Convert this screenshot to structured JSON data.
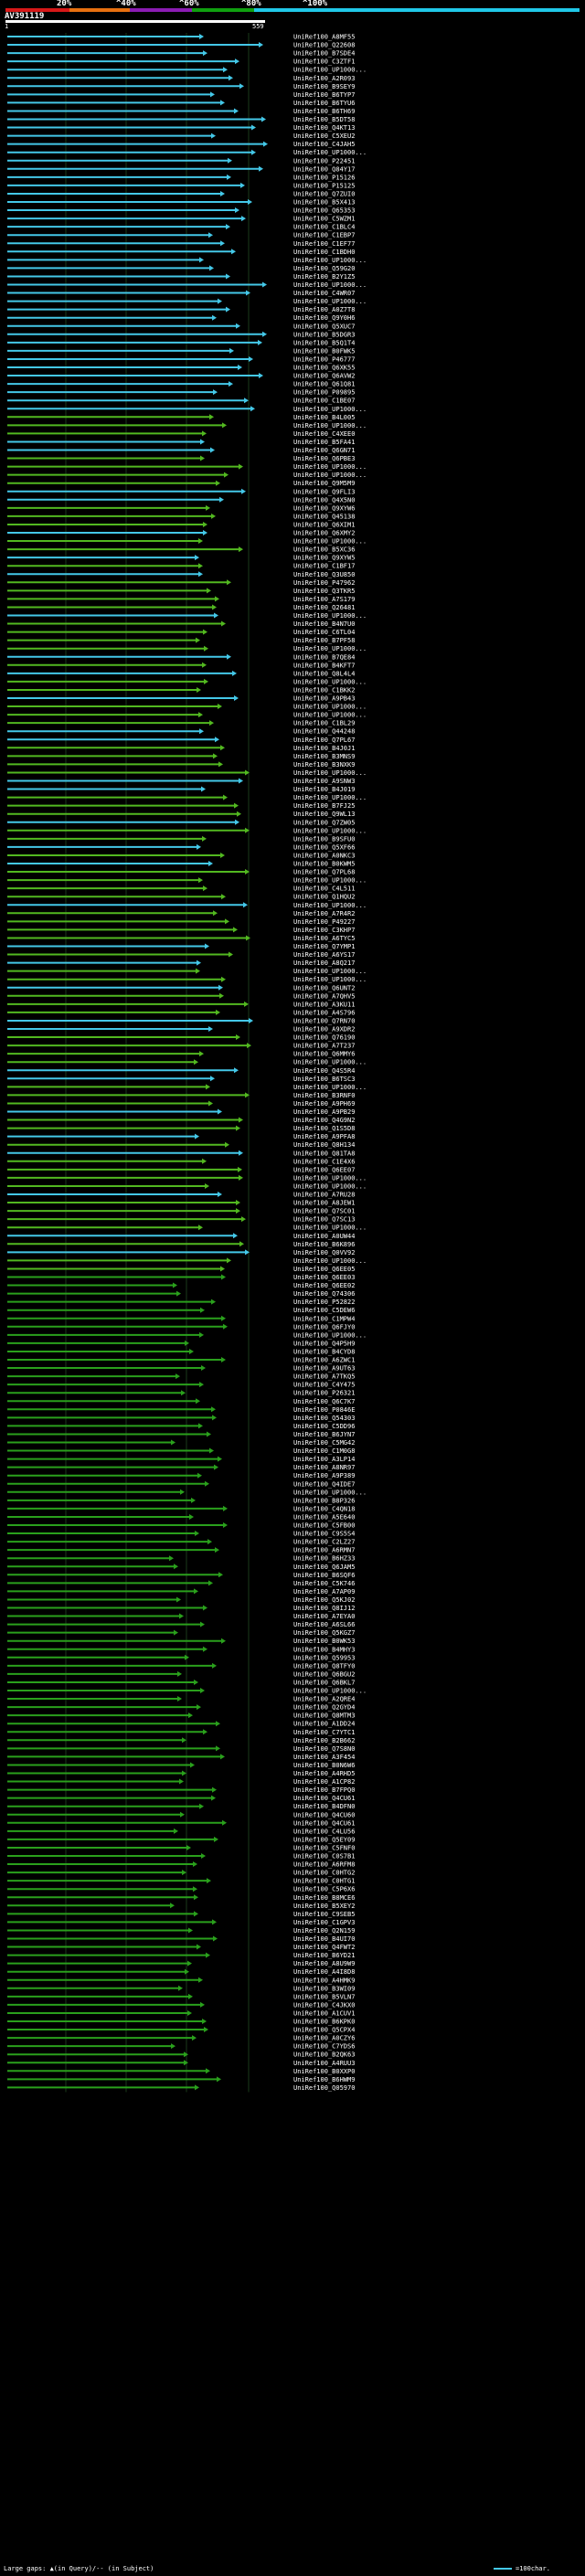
{
  "query": {
    "name": "AV391119",
    "start": "1",
    "end": "559"
  },
  "scale_ticks": [
    "20%",
    "^40%",
    "^60%",
    "^80%",
    "^100%"
  ],
  "colors": {
    "bg": "#000000",
    "seg_red": "#d81818",
    "seg_orange": "#e87010",
    "seg_purple": "#8c1cb4",
    "seg_green": "#10a010",
    "seg_cyan": "#20c8e8",
    "hit_high": "#44c8e8",
    "hit_mid": "#52b820",
    "hit_low": "#2aa01c"
  },
  "hits": [
    "UniRef100_A8MF55",
    "UniRef100_Q22608",
    "UniRef100_B7SDE4",
    "UniRef100_C3ZTF1",
    "UniRef100_UP1000...",
    "UniRef100_A2R093",
    "UniRef100_B9SEY9",
    "UniRef100_B6TYP7",
    "UniRef100_B6TYU6",
    "UniRef100_B6TH69",
    "UniRef100_B5DT58",
    "UniRef100_Q4KT13",
    "UniRef100_C5XEU2",
    "UniRef100_C4JAH5",
    "UniRef100_UP1000...",
    "UniRef100_P22451",
    "UniRef100_Q84Y17",
    "UniRef100_P15126",
    "UniRef100_P15125",
    "UniRef100_Q7ZUI0",
    "UniRef100_B5X413",
    "UniRef100_Q65353",
    "UniRef100_C5WZM1",
    "UniRef100_C1BLC4",
    "UniRef100_C1EBP7",
    "UniRef100_C1EF77",
    "UniRef100_C1BDH0",
    "UniRef100_UP1000...",
    "UniRef100_Q59G20",
    "UniRef100_B2Y1Z5",
    "UniRef100_UP1000...",
    "UniRef100_C4WR07",
    "UniRef100_UP1000...",
    "UniRef100_A0Z7T8",
    "UniRef100_Q9Y0H6",
    "UniRef100_Q5XUC7",
    "UniRef100_B5DGR3",
    "UniRef100_B5Q1T4",
    "UniRef100_B0FWK5",
    "UniRef100_P46777",
    "UniRef100_Q6XK55",
    "UniRef100_Q6AVW2",
    "UniRef100_Q61Q81",
    "UniRef100_P09895",
    "UniRef100_C1BE07",
    "UniRef100_UP1000...",
    "UniRef100_B4L005",
    "UniRef100_UP1000...",
    "UniRef100_C4XEE0",
    "UniRef100_B5FA41",
    "UniRef100_Q6GN71",
    "UniRef100_Q6PBE3",
    "UniRef100_UP1000...",
    "UniRef100_UP1000...",
    "UniRef100_Q9M5M9",
    "UniRef100_Q9FLI3",
    "UniRef100_Q4X5N0",
    "UniRef100_Q9XYW6",
    "UniRef100_Q45138",
    "UniRef100_Q6XIM1",
    "UniRef100_Q6XMY2",
    "UniRef100_UP1000...",
    "UniRef100_B5XC36",
    "UniRef100_Q9XYW5",
    "UniRef100_C1BF17",
    "UniRef100_Q3U850",
    "UniRef100_P47962",
    "UniRef100_Q3TKR5",
    "UniRef100_A7S179",
    "UniRef100_Q26481",
    "UniRef100_UP1000...",
    "UniRef100_B4N7U0",
    "UniRef100_C6TL04",
    "UniRef100_B7PF58",
    "UniRef100_UP1000...",
    "UniRef100_B7QE84",
    "UniRef100_B4KFT7",
    "UniRef100_Q8L4L4",
    "UniRef100_UP1000...",
    "UniRef100_C1BKK2",
    "UniRef100_A9PB43",
    "UniRef100_UP1000...",
    "UniRef100_UP1000...",
    "UniRef100_C1BL29",
    "UniRef100_Q44248",
    "UniRef100_Q7PL67",
    "UniRef100_B4J0J1",
    "UniRef100_B3MNS9",
    "UniRef100_B3NXK9",
    "UniRef100_UP1000...",
    "UniRef100_A9SNW3",
    "UniRef100_B4J019",
    "UniRef100_UP1000...",
    "UniRef100_B7FJ25",
    "UniRef100_Q9WL13",
    "UniRef100_Q7ZW05",
    "UniRef100_UP1000...",
    "UniRef100_B9SFU0",
    "UniRef100_Q5XF66",
    "UniRef100_A0NKC3",
    "UniRef100_B0KWM5",
    "UniRef100_Q7PL68",
    "UniRef100_UP1000...",
    "UniRef100_C4L511",
    "UniRef100_Q1HQU2",
    "UniRef100_UP1000...",
    "UniRef100_A7R4R2",
    "UniRef100_P49227",
    "UniRef100_C3KHP7",
    "UniRef100_A6TYC5",
    "UniRef100_Q7YMP1",
    "UniRef100_A6YS17",
    "UniRef100_A8Q217",
    "UniRef100_UP1000...",
    "UniRef100_UP1000...",
    "UniRef100_Q6UNT2",
    "UniRef100_A7QHV5",
    "UniRef100_A3KU11",
    "UniRef100_A4S796",
    "UniRef100_Q7RN70",
    "UniRef100_A9XDR2",
    "UniRef100_Q76190",
    "UniRef100_A7T237",
    "UniRef100_Q6MMY6",
    "UniRef100_UP1000...",
    "UniRef100_Q4S5R4",
    "UniRef100_B6TSC3",
    "UniRef100_UP1000...",
    "UniRef100_B3RNF0",
    "UniRef100_A9PH69",
    "UniRef100_A9PB29",
    "UniRef100_Q4G9N2",
    "UniRef100_Q1S5D8",
    "UniRef100_A9PFA8",
    "UniRef100_Q8H134",
    "UniRef100_Q81TA8",
    "UniRef100_C1E4X6",
    "UniRef100_Q6EE07",
    "UniRef100_UP1000...",
    "UniRef100_UP1000...",
    "UniRef100_A7RU28",
    "UniRef100_A8JEW1",
    "UniRef100_Q7SC01",
    "UniRef100_Q7SC13",
    "UniRef100_UP1000...",
    "UniRef100_A0UW44",
    "UniRef100_B6K896",
    "UniRef100_Q0VV92",
    "UniRef100_UP1000...",
    "UniRef100_Q6EE05",
    "UniRef100_Q6EE03",
    "UniRef100_Q6EE02",
    "UniRef100_Q74306",
    "UniRef100_P52822",
    "UniRef100_C5DEW6",
    "UniRef100_C1MPW4",
    "UniRef100_Q6FJY0",
    "UniRef100_UP1000...",
    "UniRef100_Q4P5H9",
    "UniRef100_B4CYD8",
    "UniRef100_A6ZWC1",
    "UniRef100_A9UT63",
    "UniRef100_A7TKQ5",
    "UniRef100_C4Y475",
    "UniRef100_P26321",
    "UniRef100_Q6C7K7",
    "UniRef100_P0846E",
    "UniRef100_Q54303",
    "UniRef100_C5DD96",
    "UniRef100_B6JYN7",
    "UniRef100_C5MG42",
    "UniRef100_C1M0G8",
    "UniRef100_A3LP14",
    "UniRef100_A8NR97",
    "UniRef100_A9P389",
    "UniRef100_Q4IDE7",
    "UniRef100_UP1000...",
    "UniRef100_B8P326",
    "UniRef100_C4QN18",
    "UniRef100_A5E640",
    "UniRef100_C5FB00",
    "UniRef100_C9S5S4",
    "UniRef100_C2LZ27",
    "UniRef100_A6RMN7",
    "UniRef100_B6HZ33",
    "UniRef100_Q6JAM5",
    "UniRef100_B6SQF6",
    "UniRef100_C5K746",
    "UniRef100_A7AP09",
    "UniRef100_Q5KJ02",
    "UniRef100_Q8IJ12",
    "UniRef100_A7EYA0",
    "UniRef100_A6SL66",
    "UniRef100_Q5KGZ7",
    "UniRef100_B0WK53",
    "UniRef100_B4MHY3",
    "UniRef100_Q59953",
    "UniRef100_Q8TFY0",
    "UniRef100_Q6BGU2",
    "UniRef100_Q6BKL7",
    "UniRef100_UP1000...",
    "UniRef100_A2QRE4",
    "UniRef100_Q2GYD4",
    "UniRef100_Q8MTM3",
    "UniRef100_A1DD24",
    "UniRef100_C7YTC1",
    "UniRef100_B2B662",
    "UniRef100_Q7S8N0",
    "UniRef100_A3F454",
    "UniRef100_B0N6W6",
    "UniRef100_A4RHD5",
    "UniRef100_A1CP82",
    "UniRef100_B7FPQ0",
    "UniRef100_Q4CU61",
    "UniRef100_B4DFN0",
    "UniRef100_Q4CU60",
    "UniRef100_Q4CU61",
    "UniRef100_C4LU56",
    "UniRef100_Q5EY09",
    "UniRef100_C5FNF0",
    "UniRef100_C0S7B1",
    "UniRef100_A6RFM8",
    "UniRef100_C0HTG2",
    "UniRef100_C0HTG1",
    "UniRef100_C5P6X6",
    "UniRef100_B8MCE6",
    "UniRef100_B5XEY2",
    "UniRef100_C9SEB5",
    "UniRef100_C1GPV3",
    "UniRef100_Q2N159",
    "UniRef100_B4UI70",
    "UniRef100_Q4FWT2",
    "UniRef100_B6YD21",
    "UniRef100_A8U9W9",
    "UniRef100_A4I8D8",
    "UniRef100_A4HMK9",
    "UniRef100_B3WI09",
    "UniRef100_B5VLN7",
    "UniRef100_C4JKX0",
    "UniRef100_A1CUV1",
    "UniRef100_B6KPK0",
    "UniRef100_Q5CPX4",
    "UniRef100_A0CZY6",
    "UniRef100_C7YDS6",
    "UniRef100_B2QK63",
    "UniRef100_A4RUU3",
    "UniRef100_B0XXP0",
    "UniRef100_B6HWM9",
    "UniRef100_Q05970"
  ],
  "footer": {
    "left": "Large gaps: ▲(in Query)/-- (in Subject)",
    "right": "=100char."
  }
}
